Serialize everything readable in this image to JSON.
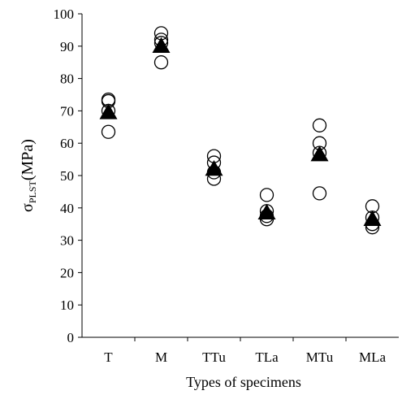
{
  "chart_data": {
    "type": "scatter",
    "xlabel": "Types of specimens",
    "ylabel": {
      "symbol": "σ",
      "subscript": "PLST",
      "unit": "(MPa)"
    },
    "ylim": [
      0,
      100
    ],
    "yticks": [
      0,
      10,
      20,
      30,
      40,
      50,
      60,
      70,
      80,
      90,
      100
    ],
    "categories": [
      "T",
      "M",
      "TTu",
      "TLa",
      "MTu",
      "MLa"
    ],
    "grid": false,
    "legend": "none",
    "series": [
      {
        "marker": "open-circle",
        "points": [
          {
            "category": "T",
            "values": [
              73.5,
              73.0,
              70.0,
              63.5
            ]
          },
          {
            "category": "M",
            "values": [
              94.0,
              92.0,
              91.0,
              85.0
            ]
          },
          {
            "category": "TTu",
            "values": [
              56.0,
              54.0,
              51.0,
              49.0
            ]
          },
          {
            "category": "TLa",
            "values": [
              44.0,
              39.0,
              37.5,
              36.5
            ]
          },
          {
            "category": "MTu",
            "values": [
              65.5,
              60.0,
              57.0,
              44.5
            ]
          },
          {
            "category": "MLa",
            "values": [
              40.5,
              37.0,
              35.0,
              34.0
            ]
          }
        ]
      },
      {
        "marker": "filled-triangle",
        "points": [
          {
            "category": "T",
            "value": 69.5
          },
          {
            "category": "M",
            "value": 90.0
          },
          {
            "category": "TTu",
            "value": 52.0
          },
          {
            "category": "TLa",
            "value": 38.5
          },
          {
            "category": "MTu",
            "value": 56.5
          },
          {
            "category": "MLa",
            "value": 36.5
          }
        ]
      }
    ],
    "colors": {
      "axis": "#000000",
      "marker": "#000000",
      "background": "#ffffff"
    }
  }
}
